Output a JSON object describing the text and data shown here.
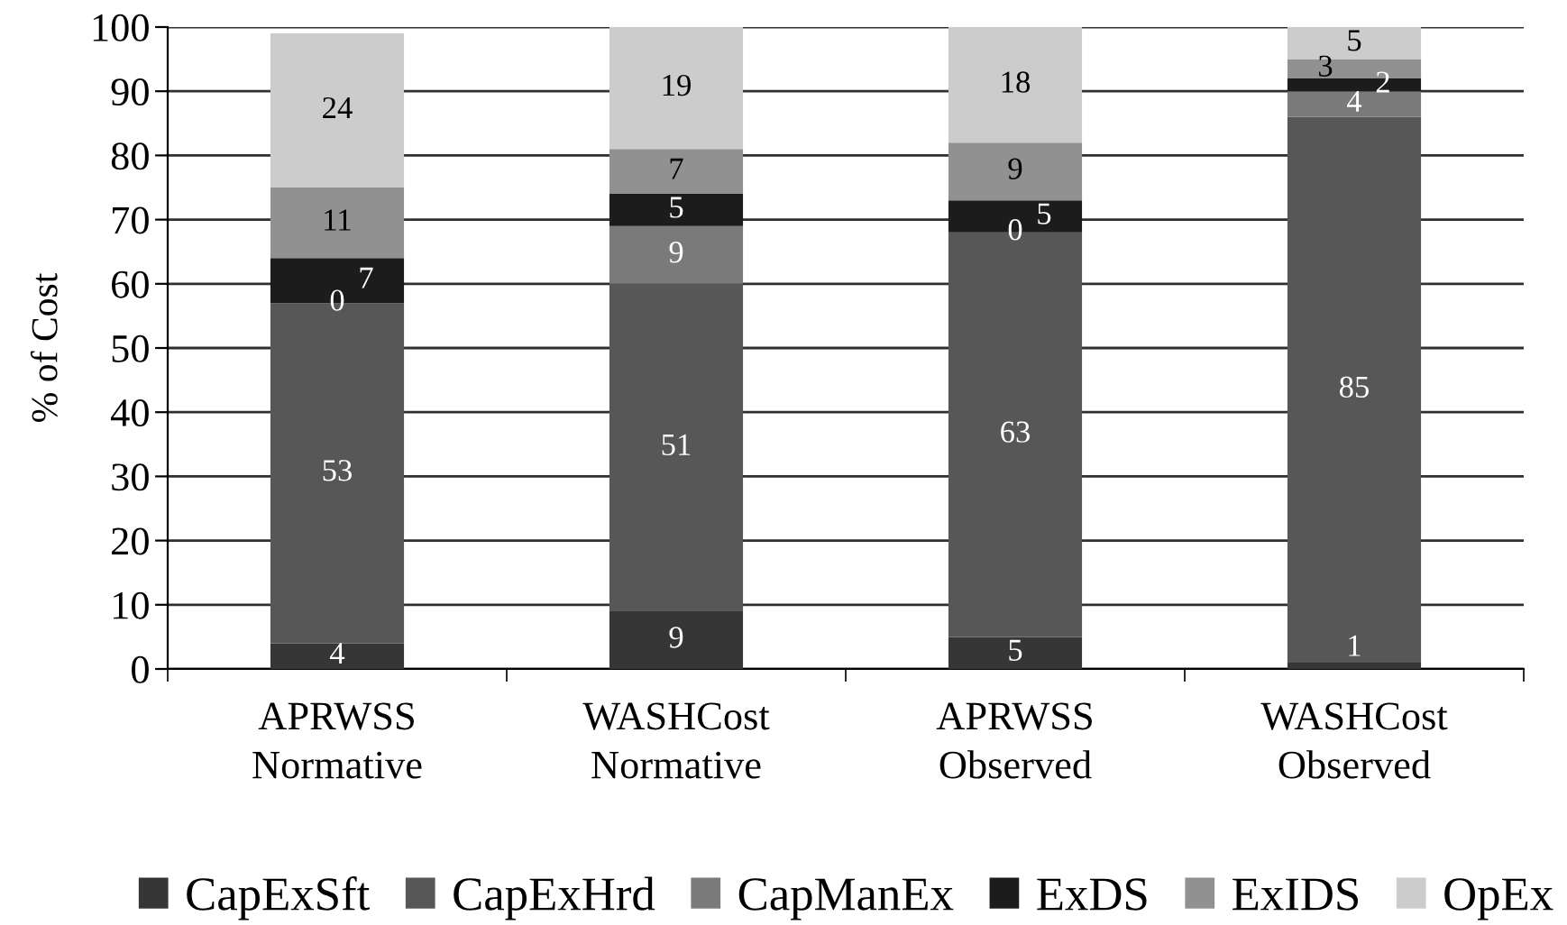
{
  "chart_data": {
    "type": "bar",
    "stacked": true,
    "ylabel": "% of Cost",
    "categories": [
      "APRWSS\nNormative",
      "WASHCost\nNormative",
      "APRWSS\nObserved",
      "WASHCost\nObserved"
    ],
    "series": [
      {
        "name": "CapExSft",
        "color": "#363636",
        "values": [
          4,
          9,
          5,
          1
        ],
        "value_labels": [
          "4",
          "9",
          "5",
          "1"
        ]
      },
      {
        "name": "CapExHrd",
        "color": "#575757",
        "values": [
          53,
          51,
          63,
          85
        ],
        "value_labels": [
          "53",
          "51",
          "63",
          "85"
        ]
      },
      {
        "name": "CapManEx",
        "color": "#7a7a7a",
        "values": [
          0,
          9,
          0,
          4
        ],
        "value_labels": [
          null,
          "9",
          null,
          "4"
        ]
      },
      {
        "name": "ExDS",
        "color": "#1c1c1c",
        "values": [
          7,
          5,
          5,
          2
        ],
        "value_labels": [
          "7",
          "5",
          "5",
          "2"
        ]
      },
      {
        "name": "ExIDS",
        "color": "#919191",
        "values": [
          11,
          7,
          9,
          3
        ],
        "value_labels": [
          "11",
          "7",
          "9",
          "3"
        ]
      },
      {
        "name": "OpEx",
        "color": "#cccccc",
        "values": [
          24,
          19,
          18,
          5
        ],
        "value_labels": [
          "24",
          "19",
          "18",
          "5"
        ]
      }
    ],
    "annotations": [
      {
        "text": "0",
        "x": "APRWSS\nNormative",
        "y": 57
      },
      {
        "text": "0",
        "x": "APRWSS\nObserved",
        "y": 68
      }
    ],
    "ylim": [
      0,
      100
    ],
    "yticks": [
      0,
      10,
      20,
      30,
      40,
      50,
      60,
      70,
      80,
      90,
      100
    ],
    "grid": "y",
    "legend": "bottom"
  }
}
